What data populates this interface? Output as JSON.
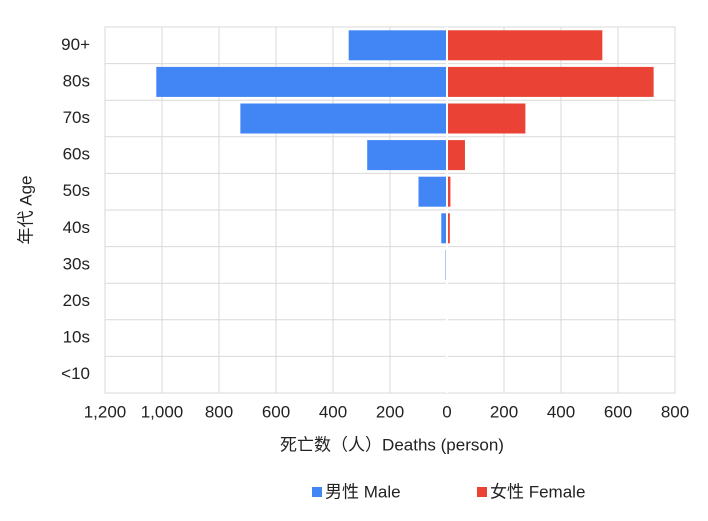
{
  "chart_data": {
    "type": "bar",
    "orientation": "horizontal",
    "x_label": "死亡数（人）Deaths (person)",
    "y_label": "年代 Age",
    "categories": [
      "90+",
      "80s",
      "70s",
      "60s",
      "50s",
      "40s",
      "30s",
      "20s",
      "10s",
      "<10"
    ],
    "series": [
      {
        "name": "男性 Male",
        "color": "#4285f4",
        "values": [
          -345,
          -1020,
          -725,
          -280,
          -100,
          -20,
          -5,
          0,
          0,
          0
        ]
      },
      {
        "name": "女性 Female",
        "color": "#ea4335",
        "values": [
          545,
          725,
          275,
          63,
          12,
          10,
          0,
          0,
          0,
          0
        ]
      }
    ],
    "xlim": [
      -1200,
      800
    ],
    "xticks": [
      {
        "value": -1200,
        "label": "1,200"
      },
      {
        "value": -1000,
        "label": "1,000"
      },
      {
        "value": -800,
        "label": "800"
      },
      {
        "value": -600,
        "label": "600"
      },
      {
        "value": -400,
        "label": "400"
      },
      {
        "value": -200,
        "label": "200"
      },
      0,
      200,
      400,
      600,
      800
    ],
    "grid": true,
    "legend": "bottom"
  }
}
